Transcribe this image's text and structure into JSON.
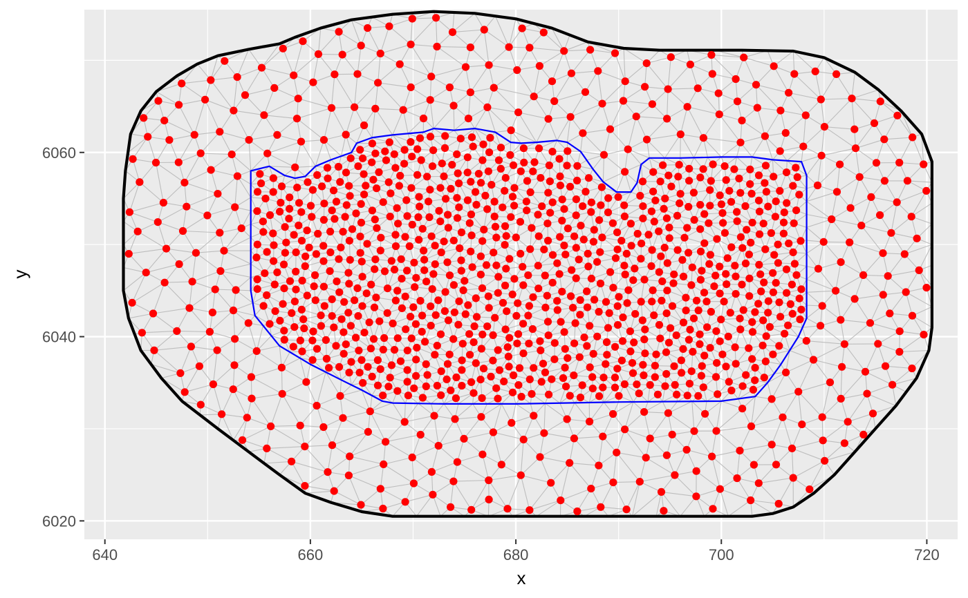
{
  "chart_data": {
    "type": "scatter",
    "title": "",
    "xlabel": "x",
    "ylabel": "y",
    "xlim": [
      638,
      723
    ],
    "ylim": [
      6018,
      6075.5
    ],
    "x_ticks": [
      640,
      660,
      680,
      700,
      720
    ],
    "y_ticks": [
      6020,
      6040,
      6060
    ],
    "x_tick_labels": [
      "640",
      "660",
      "680",
      "700",
      "720"
    ],
    "y_tick_labels": [
      "6020",
      "6040",
      "6060"
    ],
    "grid": true,
    "legend": "none",
    "colors": {
      "panel": "#ebebeb",
      "grid": "#ffffff",
      "mesh": "#bdbdbd",
      "points": "#ff0000",
      "outer_boundary": "#000000",
      "inner_boundary": "#0000ff"
    },
    "outer_boundary": [
      [
        642,
        6058
      ],
      [
        641.8,
        6055
      ],
      [
        641.8,
        6045
      ],
      [
        642.3,
        6042
      ],
      [
        643.5,
        6038.5
      ],
      [
        645.5,
        6035.5
      ],
      [
        647.5,
        6033
      ],
      [
        651,
        6030
      ],
      [
        654,
        6027.5
      ],
      [
        657,
        6025
      ],
      [
        659.5,
        6023
      ],
      [
        662,
        6022
      ],
      [
        665,
        6021
      ],
      [
        668,
        6020.5
      ],
      [
        703,
        6020.5
      ],
      [
        705,
        6020.8
      ],
      [
        707,
        6021.5
      ],
      [
        709,
        6023
      ],
      [
        711,
        6025
      ],
      [
        713,
        6027.5
      ],
      [
        715,
        6030
      ],
      [
        717,
        6032.5
      ],
      [
        719,
        6035.5
      ],
      [
        720.2,
        6038.5
      ],
      [
        720.5,
        6041
      ],
      [
        720.5,
        6059
      ],
      [
        719.5,
        6062
      ],
      [
        717.5,
        6064.5
      ],
      [
        715.3,
        6066.8
      ],
      [
        713,
        6068.7
      ],
      [
        710,
        6070.3
      ],
      [
        707,
        6071
      ],
      [
        702,
        6071.1
      ],
      [
        694,
        6071.1
      ],
      [
        690.5,
        6071.3
      ],
      [
        687,
        6072
      ],
      [
        683.5,
        6073.5
      ],
      [
        680,
        6074.5
      ],
      [
        676,
        6075.1
      ],
      [
        672,
        6075.3
      ],
      [
        668,
        6075
      ],
      [
        664,
        6074.4
      ],
      [
        661,
        6073.5
      ],
      [
        658.5,
        6072.5
      ],
      [
        657,
        6071.8
      ],
      [
        654,
        6071.2
      ],
      [
        651,
        6070.5
      ],
      [
        649,
        6069.6
      ],
      [
        647,
        6068.3
      ],
      [
        645,
        6066.6
      ],
      [
        643.5,
        6064.5
      ],
      [
        642.5,
        6062
      ],
      [
        642,
        6058
      ]
    ],
    "inner_boundary": [
      [
        654.2,
        6058
      ],
      [
        656,
        6058.5
      ],
      [
        657.5,
        6057.5
      ],
      [
        658.5,
        6057.2
      ],
      [
        659.5,
        6057.4
      ],
      [
        660.5,
        6058.5
      ],
      [
        662,
        6059.2
      ],
      [
        663,
        6059.6
      ],
      [
        664,
        6060
      ],
      [
        664.5,
        6061
      ],
      [
        666,
        6061.6
      ],
      [
        668,
        6061.9
      ],
      [
        671,
        6062.2
      ],
      [
        672,
        6062.6
      ],
      [
        674,
        6062.4
      ],
      [
        676,
        6062.6
      ],
      [
        678,
        6062.2
      ],
      [
        679.5,
        6061.1
      ],
      [
        680.5,
        6061
      ],
      [
        682,
        6061.1
      ],
      [
        684,
        6061.3
      ],
      [
        685,
        6061.1
      ],
      [
        686.3,
        6060.1
      ],
      [
        687.5,
        6058.2
      ],
      [
        688.5,
        6056.8
      ],
      [
        689.8,
        6055.7
      ],
      [
        691.2,
        6055.7
      ],
      [
        691.8,
        6056.7
      ],
      [
        692.2,
        6058.7
      ],
      [
        693,
        6059.4
      ],
      [
        696,
        6059.4
      ],
      [
        700,
        6059.5
      ],
      [
        703,
        6059.5
      ],
      [
        705,
        6059.2
      ],
      [
        707.8,
        6059
      ],
      [
        708.3,
        6057.5
      ],
      [
        708.3,
        6042
      ],
      [
        707.5,
        6040
      ],
      [
        705.8,
        6037
      ],
      [
        704.5,
        6035
      ],
      [
        703.3,
        6033.5
      ],
      [
        700,
        6033
      ],
      [
        690,
        6032.9
      ],
      [
        680,
        6032.7
      ],
      [
        673,
        6032.7
      ],
      [
        668,
        6032.8
      ],
      [
        667,
        6033
      ],
      [
        665,
        6034.2
      ],
      [
        663,
        6035.3
      ],
      [
        660,
        6037
      ],
      [
        657,
        6039
      ],
      [
        654.6,
        6042.3
      ],
      [
        654.2,
        6045
      ],
      [
        654.2,
        6058
      ]
    ]
  }
}
